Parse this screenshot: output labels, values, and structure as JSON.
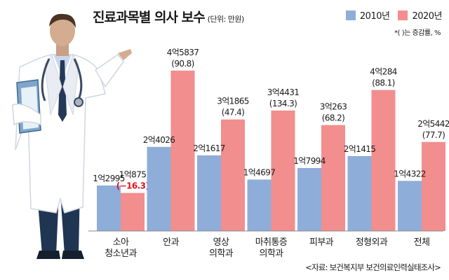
{
  "header": {
    "title": "진료과목별 의사 보수",
    "unit": "(단위: 만원)",
    "note": "*(   )는 증감률, %",
    "source": "<자료: 보건복지부 보건의료인력실태조사>"
  },
  "colors": {
    "series_2010": "#8fadd9",
    "series_2020": "#f28e8e",
    "negative_change": "#e0141e"
  },
  "chart_data": {
    "type": "bar",
    "categories": [
      [
        "소아",
        "청소년과"
      ],
      [
        "안과"
      ],
      [
        "영상",
        "의학과"
      ],
      [
        "마취통증",
        "의학과"
      ],
      [
        "피부과"
      ],
      [
        "정형외과"
      ],
      [
        "전체"
      ]
    ],
    "series": [
      {
        "name": "2010년",
        "values": [
          12995,
          24026,
          21617,
          14697,
          17994,
          21415,
          14322
        ],
        "labels": [
          "1억2995",
          "2억4026",
          "2억1617",
          "1억4697",
          "1억7994",
          "2억1415",
          "1억4322"
        ]
      },
      {
        "name": "2020년",
        "values": [
          10875,
          45837,
          31865,
          34431,
          30263,
          40284,
          25442
        ],
        "labels": [
          "1억875",
          "4억5837",
          "3억1865",
          "3억4431",
          "3억263",
          "4억284",
          "2억5442"
        ],
        "change_labels": [
          "(−16.3)",
          "(90.8)",
          "(47.4)",
          "(134.3)",
          "(68.2)",
          "(88.1)",
          "(77.7)"
        ]
      }
    ],
    "ylim": [
      0,
      50000
    ],
    "grid": false,
    "legend": "top-right"
  }
}
